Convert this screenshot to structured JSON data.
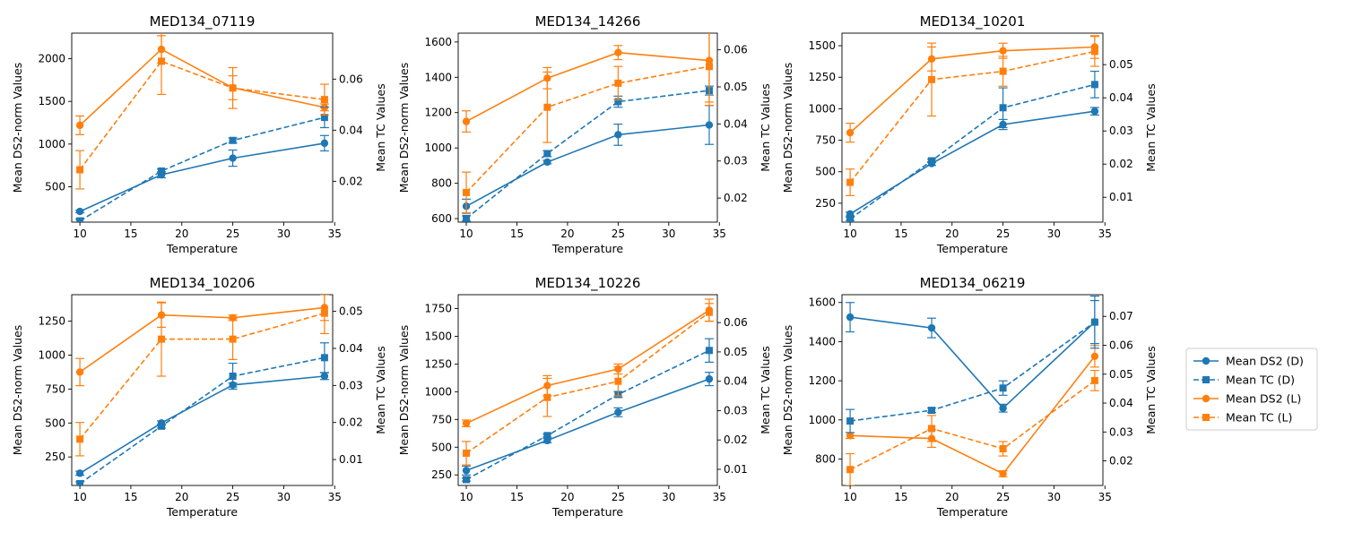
{
  "colors": {
    "D": "#1f77b4",
    "L": "#ff7f0e"
  },
  "legend": [
    {
      "label": "Mean DS2 (D)",
      "series": "DS2_D",
      "color": "#1f77b4",
      "dashed": false,
      "marker": "circle"
    },
    {
      "label": "Mean TC (D)",
      "series": "TC_D",
      "color": "#1f77b4",
      "dashed": true,
      "marker": "square"
    },
    {
      "label": "Mean DS2 (L)",
      "series": "DS2_L",
      "color": "#ff7f0e",
      "dashed": false,
      "marker": "circle"
    },
    {
      "label": "Mean TC (L)",
      "series": "TC_L",
      "color": "#ff7f0e",
      "dashed": true,
      "marker": "square"
    }
  ],
  "chart_data": [
    {
      "type": "line",
      "title": "MED134_07119",
      "xlabel": "Temperature",
      "ylabel": "Mean DS2-norm Values",
      "y2label": "Mean TC Values",
      "x": [
        10,
        18,
        25,
        34
      ],
      "xlim": [
        9.2,
        34.8
      ],
      "xticks": [
        10,
        15,
        20,
        25,
        30,
        35
      ],
      "ylim": [
        85,
        2300
      ],
      "yticks": [
        500,
        1000,
        1500,
        2000
      ],
      "y2lim": [
        0.004,
        0.078
      ],
      "y2ticks": [
        0.02,
        0.04,
        0.06
      ],
      "y2decimals": 2,
      "series": [
        {
          "key": "DS2_D",
          "values": [
            210,
            640,
            835,
            1010
          ],
          "err": [
            15,
            35,
            95,
            90
          ]
        },
        {
          "key": "DS2_L",
          "values": [
            1220,
            2110,
            1660,
            1430
          ],
          "err": [
            110,
            160,
            140,
            40
          ]
        },
        {
          "key": "TC_D",
          "values": [
            0.0045,
            0.024,
            0.036,
            0.045
          ],
          "err": [
            0.0007,
            0.0008,
            0.001,
            0.004
          ]
        },
        {
          "key": "TC_L",
          "values": [
            0.0245,
            0.067,
            0.0565,
            0.052
          ],
          "err": [
            0.0075,
            0.013,
            0.008,
            0.006
          ]
        }
      ]
    },
    {
      "type": "line",
      "title": "MED134_14266",
      "xlabel": "Temperature",
      "ylabel": "Mean DS2-norm Values",
      "y2label": "Mean TC Values",
      "x": [
        10,
        18,
        25,
        34
      ],
      "xlim": [
        9.2,
        34.8
      ],
      "xticks": [
        10,
        15,
        20,
        25,
        30,
        35
      ],
      "ylim": [
        580,
        1650
      ],
      "yticks": [
        600,
        800,
        1000,
        1200,
        1400,
        1600
      ],
      "y2lim": [
        0.0135,
        0.0645
      ],
      "y2ticks": [
        0.02,
        0.03,
        0.04,
        0.05,
        0.06
      ],
      "y2decimals": 2,
      "series": [
        {
          "key": "DS2_D",
          "values": [
            670,
            920,
            1075,
            1130
          ],
          "err": [
            40,
            10,
            60,
            110
          ]
        },
        {
          "key": "DS2_L",
          "values": [
            1150,
            1395,
            1540,
            1495
          ],
          "err": [
            60,
            60,
            40,
            235
          ]
        },
        {
          "key": "TC_D",
          "values": [
            0.0145,
            0.032,
            0.046,
            0.049
          ],
          "err": [
            0.0007,
            0.0008,
            0.0015,
            0.0012
          ]
        },
        {
          "key": "TC_L",
          "values": [
            0.0215,
            0.0445,
            0.051,
            0.0555
          ],
          "err": [
            0.0055,
            0.0095,
            0.0045,
            0.0105
          ]
        }
      ]
    },
    {
      "type": "line",
      "title": "MED134_10201",
      "xlabel": "Temperature",
      "ylabel": "Mean DS2-norm Values",
      "y2label": "Mean TC Values",
      "x": [
        10,
        18,
        25,
        34
      ],
      "xlim": [
        9.2,
        34.8
      ],
      "xticks": [
        10,
        15,
        20,
        25,
        30,
        35
      ],
      "ylim": [
        100,
        1600
      ],
      "yticks": [
        250,
        500,
        750,
        1000,
        1250,
        1500
      ],
      "y2lim": [
        0.0025,
        0.0595
      ],
      "y2ticks": [
        0.01,
        0.02,
        0.03,
        0.04,
        0.05
      ],
      "y2decimals": 2,
      "series": [
        {
          "key": "DS2_D",
          "values": [
            165,
            565,
            875,
            980
          ],
          "err": [
            15,
            15,
            40,
            30
          ]
        },
        {
          "key": "DS2_L",
          "values": [
            810,
            1395,
            1460,
            1490
          ],
          "err": [
            75,
            95,
            60,
            90
          ]
        },
        {
          "key": "TC_D",
          "values": [
            0.0035,
            0.021,
            0.037,
            0.044
          ],
          "err": [
            0.0005,
            0.0005,
            0.006,
            0.004
          ]
        },
        {
          "key": "TC_L",
          "values": [
            0.0145,
            0.0455,
            0.048,
            0.054
          ],
          "err": [
            0.004,
            0.011,
            0.0045,
            0.0045
          ]
        }
      ]
    },
    {
      "type": "line",
      "title": "MED134_10206",
      "xlabel": "Temperature",
      "ylabel": "Mean DS2-norm Values",
      "y2label": "Mean TC Values",
      "x": [
        10,
        18,
        25,
        34
      ],
      "xlim": [
        9.2,
        34.8
      ],
      "xticks": [
        10,
        15,
        20,
        25,
        30,
        35
      ],
      "ylim": [
        40,
        1445
      ],
      "yticks": [
        250,
        500,
        750,
        1000,
        1250
      ],
      "y2lim": [
        0.003,
        0.0545
      ],
      "y2ticks": [
        0.01,
        0.02,
        0.03,
        0.04,
        0.05
      ],
      "y2decimals": 2,
      "series": [
        {
          "key": "DS2_D",
          "values": [
            130,
            500,
            780,
            845
          ],
          "err": [
            15,
            15,
            15,
            25
          ]
        },
        {
          "key": "DS2_L",
          "values": [
            875,
            1295,
            1275,
            1350
          ],
          "err": [
            100,
            90,
            20,
            95
          ]
        },
        {
          "key": "TC_D",
          "values": [
            0.0035,
            0.019,
            0.0325,
            0.0375
          ],
          "err": [
            0.0005,
            0.0005,
            0.0035,
            0.004
          ]
        },
        {
          "key": "TC_L",
          "values": [
            0.0155,
            0.0425,
            0.0425,
            0.0495
          ],
          "err": [
            0.0045,
            0.01,
            0.0055,
            0.0055
          ]
        }
      ]
    },
    {
      "type": "line",
      "title": "MED134_10226",
      "xlabel": "Temperature",
      "ylabel": "Mean DS2-norm Values",
      "y2label": "Mean TC Values",
      "x": [
        10,
        18,
        25,
        34
      ],
      "xlim": [
        9.2,
        34.8
      ],
      "xticks": [
        10,
        15,
        20,
        25,
        30,
        35
      ],
      "ylim": [
        155,
        1875
      ],
      "yticks": [
        250,
        500,
        750,
        1000,
        1250,
        1500,
        1750
      ],
      "y2lim": [
        0.0045,
        0.0695
      ],
      "y2ticks": [
        0.01,
        0.02,
        0.03,
        0.04,
        0.05,
        0.06
      ],
      "y2decimals": 2,
      "series": [
        {
          "key": "DS2_D",
          "values": [
            290,
            560,
            815,
            1115
          ],
          "err": [
            40,
            20,
            40,
            60
          ]
        },
        {
          "key": "DS2_L",
          "values": [
            715,
            1055,
            1205,
            1735
          ],
          "err": [
            30,
            90,
            45,
            100
          ]
        },
        {
          "key": "TC_D",
          "values": [
            0.0065,
            0.0215,
            0.0355,
            0.0505
          ],
          "err": [
            0.0005,
            0.0005,
            0.001,
            0.004
          ]
        },
        {
          "key": "TC_L",
          "values": [
            0.0155,
            0.0345,
            0.04,
            0.0635
          ],
          "err": [
            0.004,
            0.0065,
            0.005,
            0.003
          ]
        }
      ]
    },
    {
      "type": "line",
      "title": "MED134_06219",
      "xlabel": "Temperature",
      "ylabel": "Mean DS2-norm Values",
      "y2label": "Mean TC Values",
      "x": [
        10,
        18,
        25,
        34
      ],
      "xlim": [
        9.2,
        34.8
      ],
      "xticks": [
        10,
        15,
        20,
        25,
        30,
        35
      ],
      "ylim": [
        665,
        1640
      ],
      "yticks": [
        800,
        1000,
        1200,
        1400,
        1600
      ],
      "y2lim": [
        0.0115,
        0.0775
      ],
      "y2ticks": [
        0.02,
        0.03,
        0.04,
        0.05,
        0.06,
        0.07
      ],
      "y2decimals": 2,
      "series": [
        {
          "key": "DS2_D",
          "values": [
            1525,
            1470,
            1060,
            1500
          ],
          "err": [
            75,
            50,
            20,
            110
          ]
        },
        {
          "key": "DS2_L",
          "values": [
            920,
            905,
            725,
            1325
          ],
          "err": [
            15,
            45,
            15,
            55
          ]
        },
        {
          "key": "TC_D",
          "values": [
            0.0338,
            0.0375,
            0.0452,
            0.068
          ],
          "err": [
            0.004,
            0.0008,
            0.0025,
            0.009
          ]
        },
        {
          "key": "TC_L",
          "values": [
            0.017,
            0.0312,
            0.0242,
            0.0478
          ],
          "err": [
            0.0055,
            0.0045,
            0.0025,
            0.0035
          ]
        }
      ]
    }
  ]
}
